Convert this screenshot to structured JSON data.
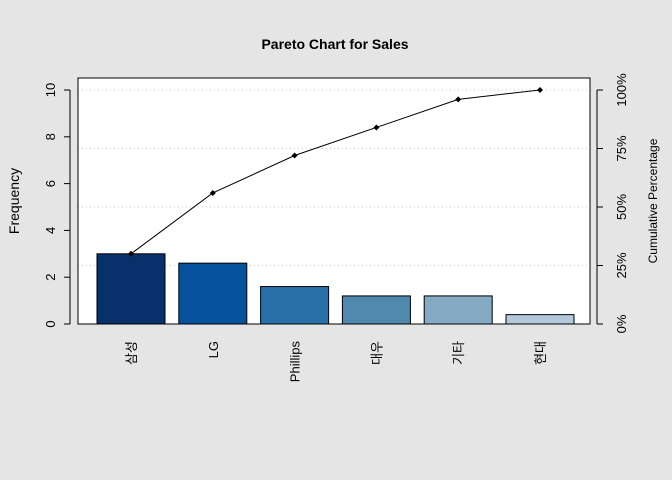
{
  "chart_data": {
    "type": "bar",
    "title": "Pareto Chart for Sales",
    "ylabel": "Frequency",
    "ylabel_right": "Cumulative Percentage",
    "categories": [
      "삼성",
      "LG",
      "Phillips",
      "대우",
      "기타",
      "현대"
    ],
    "values": [
      3.0,
      2.6,
      1.6,
      1.2,
      1.2,
      0.4
    ],
    "cumulative_percent": [
      30,
      56,
      72,
      84,
      96,
      100
    ],
    "ylim": [
      0,
      10
    ],
    "y_ticks": [
      0,
      2,
      4,
      6,
      8,
      10
    ],
    "right_ticks": [
      "0%",
      "25%",
      "50%",
      "75%",
      "100%"
    ],
    "grid": "horizontal dotted at cumulative percentage ticks",
    "bar_colors": [
      "#08306b",
      "#08519c",
      "#2870a8",
      "#5088ae",
      "#84aac4",
      "#b4c8dc"
    ],
    "background_color": "#e5e5e5",
    "plot_color": "#ffffff"
  }
}
